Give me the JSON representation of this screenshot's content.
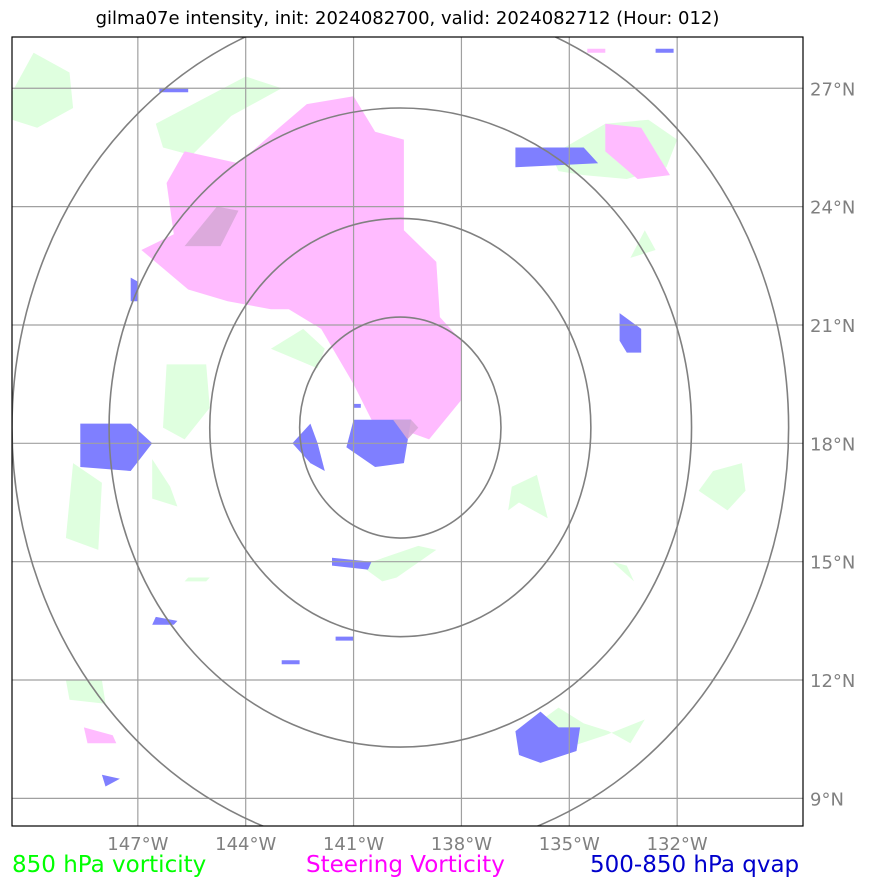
{
  "title": "gilma07e intensity, init: 2024082700, valid: 2024082712 (Hour: 012)",
  "legend": [
    {
      "label": "850 hPa vorticity",
      "color": "#00ff00"
    },
    {
      "label": "Steering Vorticity",
      "color": "#ff00ff"
    },
    {
      "label": "500-850 hPa qvap",
      "color": "#0000cc"
    }
  ],
  "colors": {
    "vort850_fill": "#dfffdf",
    "steering_fill": "#ffbbff",
    "qvap_fill": "#7f7fff",
    "overlap_fill": "#d8a8d8",
    "grid": "#a0a0a0",
    "rings": "#808080",
    "ticks": "#808080"
  },
  "chart_data": {
    "type": "contour-map",
    "projection": "plate carree",
    "xlim": [
      -150.5,
      -128.5
    ],
    "ylim": [
      8.3,
      28.3
    ],
    "x_ticks": [
      -147,
      -144,
      -141,
      -138,
      -135,
      -132
    ],
    "x_tick_labels": [
      "147°W",
      "144°W",
      "141°W",
      "138°W",
      "135°W",
      "132°W"
    ],
    "y_ticks": [
      9,
      12,
      15,
      18,
      21,
      24,
      27
    ],
    "y_tick_labels": [
      "9°N",
      "12°N",
      "15°N",
      "18°N",
      "21°N",
      "24°N",
      "27°N"
    ],
    "grid": true,
    "storm_center": {
      "lon": -139.7,
      "lat": 18.4
    },
    "range_rings_deg": [
      2.8,
      5.3,
      8.1,
      10.8
    ],
    "vort850_polygons": [
      [
        [
          -150.5,
          26.9
        ],
        [
          -149.9,
          27.9
        ],
        [
          -148.9,
          27.4
        ],
        [
          -148.8,
          26.5
        ],
        [
          -149.8,
          26.0
        ],
        [
          -150.5,
          26.2
        ]
      ],
      [
        [
          -146.5,
          26.1
        ],
        [
          -144.0,
          27.3
        ],
        [
          -143.0,
          27.0
        ],
        [
          -144.4,
          26.3
        ],
        [
          -145.5,
          25.3
        ],
        [
          -146.3,
          25.5
        ]
      ],
      [
        [
          -135.5,
          25.3
        ],
        [
          -134.0,
          26.1
        ],
        [
          -132.8,
          26.2
        ],
        [
          -132.0,
          25.7
        ],
        [
          -132.3,
          25.0
        ],
        [
          -133.4,
          24.7
        ],
        [
          -134.6,
          24.8
        ],
        [
          -135.3,
          24.9
        ]
      ],
      [
        [
          -133.3,
          22.7
        ],
        [
          -132.9,
          23.4
        ],
        [
          -132.6,
          22.9
        ]
      ],
      [
        [
          -146.2,
          20.0
        ],
        [
          -145.1,
          20.0
        ],
        [
          -145.0,
          18.9
        ],
        [
          -145.7,
          18.1
        ],
        [
          -146.3,
          18.4
        ]
      ],
      [
        [
          -143.3,
          20.4
        ],
        [
          -142.4,
          20.9
        ],
        [
          -141.8,
          20.4
        ],
        [
          -142.0,
          19.9
        ]
      ],
      [
        [
          -148.8,
          17.5
        ],
        [
          -148.0,
          17.0
        ],
        [
          -148.1,
          15.3
        ],
        [
          -149.0,
          15.6
        ]
      ],
      [
        [
          -146.6,
          17.6
        ],
        [
          -146.1,
          16.9
        ],
        [
          -145.9,
          16.4
        ],
        [
          -146.6,
          16.6
        ]
      ],
      [
        [
          -136.6,
          16.9
        ],
        [
          -135.9,
          17.2
        ],
        [
          -135.6,
          16.1
        ],
        [
          -136.4,
          16.5
        ],
        [
          -136.7,
          16.3
        ]
      ],
      [
        [
          -131.0,
          17.3
        ],
        [
          -130.2,
          17.5
        ],
        [
          -130.1,
          16.8
        ],
        [
          -130.6,
          16.3
        ],
        [
          -131.4,
          16.8
        ]
      ],
      [
        [
          -140.8,
          14.9
        ],
        [
          -140.2,
          14.5
        ],
        [
          -139.8,
          14.6
        ],
        [
          -138.7,
          15.3
        ],
        [
          -139.2,
          15.4
        ]
      ],
      [
        [
          -133.8,
          15.0
        ],
        [
          -133.2,
          14.5
        ],
        [
          -133.4,
          14.9
        ]
      ],
      [
        [
          -145.6,
          14.6
        ],
        [
          -145.0,
          14.6
        ],
        [
          -145.1,
          14.5
        ],
        [
          -145.7,
          14.5
        ]
      ],
      [
        [
          -149.0,
          12.0
        ],
        [
          -148.0,
          12.0
        ],
        [
          -147.9,
          11.4
        ],
        [
          -148.9,
          11.5
        ]
      ],
      [
        [
          -136.2,
          10.7
        ],
        [
          -135.3,
          11.3
        ],
        [
          -134.6,
          10.9
        ],
        [
          -133.9,
          10.7
        ],
        [
          -133.3,
          10.4
        ],
        [
          -132.9,
          11.0
        ],
        [
          -134.0,
          10.6
        ],
        [
          -135.0,
          10.3
        ]
      ]
    ],
    "steering_polygons": [
      [
        [
          -145.7,
          25.4
        ],
        [
          -144.2,
          25.1
        ],
        [
          -143.2,
          25.9
        ],
        [
          -142.3,
          26.6
        ],
        [
          -141.0,
          26.8
        ],
        [
          -140.4,
          25.9
        ],
        [
          -139.6,
          25.7
        ],
        [
          -139.6,
          23.4
        ],
        [
          -138.7,
          22.6
        ],
        [
          -138.6,
          21.2
        ],
        [
          -138.0,
          20.6
        ],
        [
          -138.0,
          19.1
        ],
        [
          -138.9,
          18.1
        ],
        [
          -139.8,
          18.4
        ],
        [
          -140.5,
          18.6
        ],
        [
          -141.0,
          19.5
        ],
        [
          -141.9,
          20.9
        ],
        [
          -142.8,
          21.4
        ],
        [
          -143.3,
          21.4
        ],
        [
          -144.5,
          21.6
        ],
        [
          -145.6,
          21.9
        ],
        [
          -146.9,
          22.9
        ],
        [
          -146.0,
          23.3
        ],
        [
          -146.2,
          24.6
        ]
      ],
      [
        [
          -148.5,
          10.8
        ],
        [
          -147.7,
          10.6
        ],
        [
          -147.6,
          10.4
        ],
        [
          -148.4,
          10.4
        ]
      ],
      [
        [
          -134.0,
          26.1
        ],
        [
          -133.0,
          26.0
        ],
        [
          -132.2,
          24.8
        ],
        [
          -133.1,
          24.7
        ],
        [
          -134.0,
          25.4
        ]
      ],
      [
        [
          -134.5,
          28.0
        ],
        [
          -134.0,
          28.0
        ],
        [
          -134.0,
          27.9
        ],
        [
          -134.5,
          27.9
        ]
      ]
    ],
    "qvap_polygons": [
      [
        [
          -148.6,
          18.5
        ],
        [
          -147.2,
          18.5
        ],
        [
          -146.6,
          18.0
        ],
        [
          -147.2,
          17.3
        ],
        [
          -148.6,
          17.4
        ]
      ],
      [
        [
          -141.0,
          18.6
        ],
        [
          -139.4,
          18.6
        ],
        [
          -139.6,
          17.5
        ],
        [
          -140.4,
          17.4
        ],
        [
          -141.2,
          17.9
        ]
      ],
      [
        [
          -142.2,
          18.5
        ],
        [
          -142.0,
          18.0
        ],
        [
          -141.8,
          17.3
        ],
        [
          -142.2,
          17.5
        ],
        [
          -142.7,
          18.0
        ]
      ],
      [
        [
          -136.5,
          25.5
        ],
        [
          -134.6,
          25.5
        ],
        [
          -134.2,
          25.1
        ],
        [
          -136.5,
          25.0
        ]
      ],
      [
        [
          -133.6,
          21.3
        ],
        [
          -133.0,
          20.9
        ],
        [
          -133.0,
          20.3
        ],
        [
          -133.4,
          20.3
        ],
        [
          -133.6,
          20.6
        ]
      ],
      [
        [
          -136.5,
          10.7
        ],
        [
          -135.8,
          11.2
        ],
        [
          -135.3,
          10.8
        ],
        [
          -134.7,
          10.8
        ],
        [
          -134.8,
          10.2
        ],
        [
          -135.8,
          9.9
        ],
        [
          -136.4,
          10.1
        ]
      ],
      [
        [
          -146.4,
          27.0
        ],
        [
          -145.6,
          27.0
        ],
        [
          -145.6,
          26.9
        ],
        [
          -146.4,
          26.9
        ]
      ],
      [
        [
          -132.6,
          28.0
        ],
        [
          -132.1,
          28.0
        ],
        [
          -132.1,
          27.9
        ],
        [
          -132.6,
          27.9
        ]
      ],
      [
        [
          -147.2,
          22.2
        ],
        [
          -147.0,
          22.1
        ],
        [
          -147.0,
          21.6
        ],
        [
          -147.2,
          21.6
        ]
      ],
      [
        [
          -141.6,
          15.1
        ],
        [
          -140.5,
          15.0
        ],
        [
          -140.6,
          14.8
        ],
        [
          -141.6,
          14.9
        ]
      ],
      [
        [
          -146.5,
          13.6
        ],
        [
          -145.9,
          13.5
        ],
        [
          -146.0,
          13.4
        ],
        [
          -146.6,
          13.4
        ]
      ],
      [
        [
          -143.0,
          12.5
        ],
        [
          -142.5,
          12.5
        ],
        [
          -142.5,
          12.4
        ],
        [
          -143.0,
          12.4
        ]
      ],
      [
        [
          -141.5,
          13.1
        ],
        [
          -141.0,
          13.1
        ],
        [
          -141.0,
          13.0
        ],
        [
          -141.5,
          13.0
        ]
      ],
      [
        [
          -148.0,
          9.6
        ],
        [
          -147.5,
          9.5
        ],
        [
          -147.9,
          9.3
        ]
      ],
      [
        [
          -141.0,
          19.0
        ],
        [
          -140.8,
          19.0
        ],
        [
          -140.8,
          18.9
        ],
        [
          -141.0,
          18.9
        ]
      ]
    ],
    "overlap_polygons": [
      [
        [
          -145.5,
          23.0
        ],
        [
          -144.7,
          23.0
        ],
        [
          -144.2,
          23.9
        ],
        [
          -144.8,
          24.0
        ],
        [
          -145.7,
          23.0
        ]
      ],
      [
        [
          -139.9,
          18.6
        ],
        [
          -139.4,
          18.6
        ],
        [
          -139.2,
          18.4
        ],
        [
          -139.5,
          18.1
        ]
      ]
    ]
  }
}
